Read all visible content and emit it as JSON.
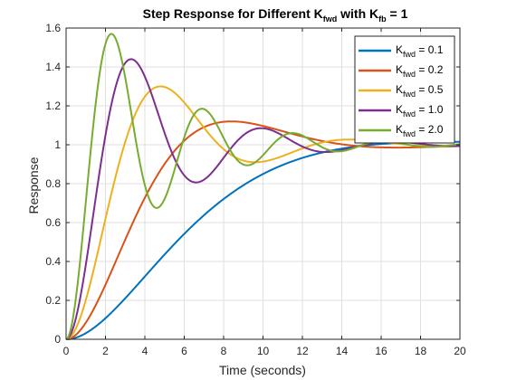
{
  "chart_data": {
    "type": "line",
    "title": {
      "prefix": "Step Response for Different K",
      "sub1": "fwd",
      "middle": " with K",
      "sub2": "fb",
      "suffix": " = 1"
    },
    "xlabel": "Time (seconds)",
    "ylabel": "Response",
    "xlim": [
      0,
      20
    ],
    "ylim": [
      0,
      1.6
    ],
    "xticks": [
      0,
      2,
      4,
      6,
      8,
      10,
      12,
      14,
      16,
      18,
      20
    ],
    "yticks": [
      0,
      0.2,
      0.4,
      0.6,
      0.8,
      1,
      1.2,
      1.4,
      1.6
    ],
    "grid": true,
    "legend_position": "top-right",
    "series": [
      {
        "legend_main": "K",
        "legend_sub": "fwd",
        "legend_value": " = 0.1",
        "color": "#0072BD",
        "peak": 1.015,
        "peak_time": 19.5
      },
      {
        "legend_main": "K",
        "legend_sub": "fwd",
        "legend_value": " = 0.2",
        "color": "#D95319",
        "peak": 1.12,
        "peak_time": 8.4
      },
      {
        "legend_main": "K",
        "legend_sub": "fwd",
        "legend_value": " = 0.5",
        "color": "#EDB120",
        "peak": 1.3,
        "peak_time": 4.8
      },
      {
        "legend_main": "K",
        "legend_sub": "fwd",
        "legend_value": " = 1.0",
        "color": "#7E2F8E",
        "peak": 1.44,
        "peak_time": 3.3
      },
      {
        "legend_main": "K",
        "legend_sub": "fwd",
        "legend_value": " = 2.0",
        "color": "#77AC30",
        "peak": 1.57,
        "peak_time": 2.3
      }
    ]
  }
}
